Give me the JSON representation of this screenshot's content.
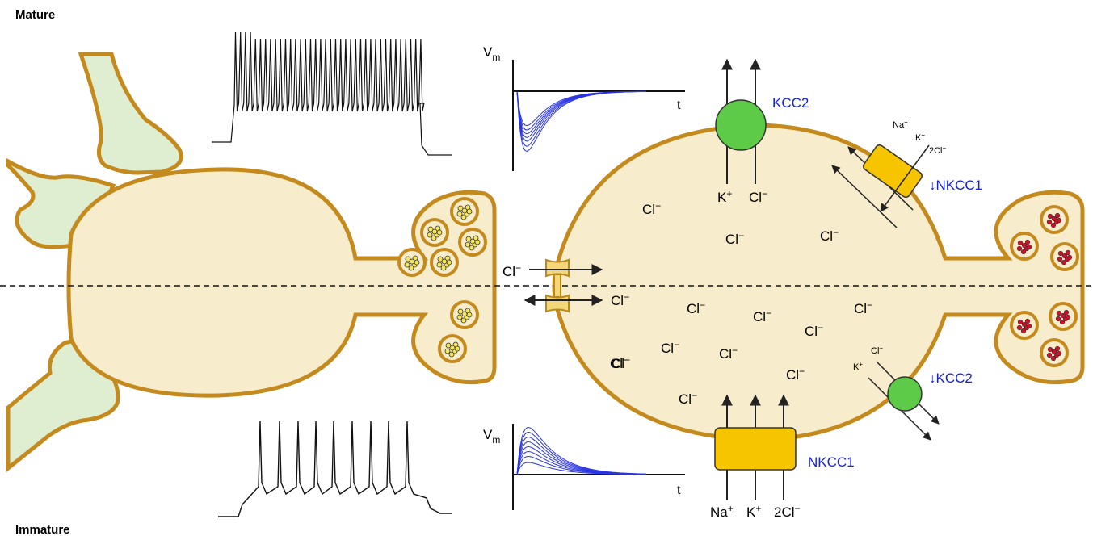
{
  "labels": {
    "mature": "Mature",
    "immature": "Immature"
  },
  "colors": {
    "membrane": "#c58a1e",
    "cytoplasm": "#f7eccb",
    "dendrite_fill": "#dfedd1",
    "kcc2": "#5ecb48",
    "nkcc1": "#f6c500",
    "blue_text": "#1521d6",
    "trace_blue": "#2a35e0",
    "vesicle_yellow": "#f6e65a",
    "vesicle_red": "#d0102a"
  },
  "transporters": {
    "kcc2": "KCC2",
    "kcc2_down": "KCC2",
    "nkcc1": "NKCC1",
    "nkcc1_down": "NKCC1",
    "down_arrow": "↓"
  },
  "ions": {
    "k": "K",
    "na": "Na",
    "cl": "Cl",
    "two_cl": "2Cl",
    "plus": "+",
    "minus": "−"
  },
  "traces": {
    "vm_top": "V",
    "vm_bottom": "V",
    "vm_sub": "m",
    "t_top": "t",
    "t_bottom": "t"
  },
  "chloride_labels_mature": [
    "Cl",
    "Cl",
    "Cl"
  ],
  "chloride_labels_immature": [
    "Cl",
    "Cl",
    "Cl",
    "Cl",
    "Cl",
    "Cl",
    "Cl",
    "Cl",
    "Cl",
    "Cl"
  ]
}
